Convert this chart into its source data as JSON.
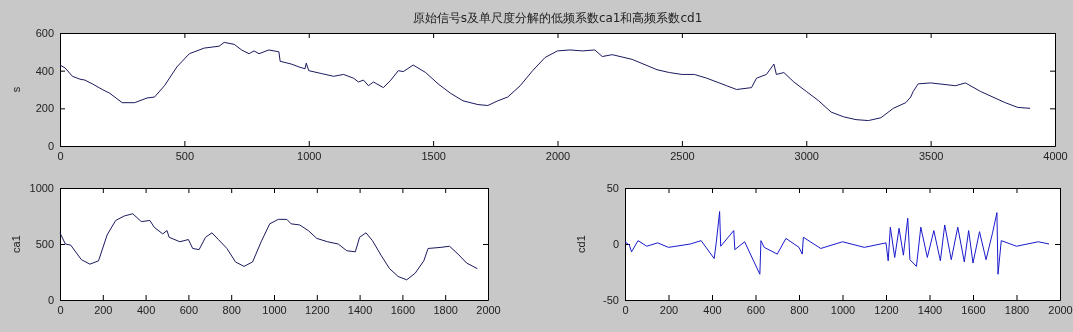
{
  "chart_data": [
    {
      "type": "line",
      "title": "原始信号s及单尺度分解的低频系数ca1和高频系数cd1",
      "ylabel": "s",
      "xlim": [
        0,
        4000
      ],
      "xticks": [
        0,
        500,
        1000,
        1500,
        2000,
        2500,
        3000,
        3500,
        4000
      ],
      "ylim": [
        0,
        600
      ],
      "yticks": [
        0,
        200,
        400,
        600
      ],
      "series": [
        {
          "color": "#1a1a5e",
          "x": [
            0,
            20,
            50,
            80,
            100,
            130,
            170,
            200,
            250,
            300,
            350,
            380,
            420,
            470,
            520,
            580,
            640,
            660,
            700,
            730,
            760,
            780,
            800,
            840,
            880,
            885,
            930,
            960,
            985,
            990,
            1000,
            1050,
            1100,
            1140,
            1180,
            1200,
            1220,
            1240,
            1260,
            1300,
            1330,
            1360,
            1380,
            1420,
            1470,
            1520,
            1570,
            1620,
            1680,
            1720,
            1760,
            1800,
            1850,
            1900,
            1950,
            2000,
            2050,
            2100,
            2150,
            2180,
            2220,
            2300,
            2400,
            2450,
            2500,
            2550,
            2600,
            2680,
            2720,
            2780,
            2800,
            2840,
            2870,
            2880,
            2910,
            2950,
            3000,
            3050,
            3100,
            3150,
            3200,
            3250,
            3300,
            3350,
            3400,
            3420,
            3430,
            3450,
            3500,
            3600,
            3640,
            3700,
            3800,
            3850,
            3900
          ],
          "values": [
            430,
            415,
            370,
            355,
            350,
            330,
            300,
            280,
            230,
            230,
            255,
            260,
            320,
            420,
            490,
            520,
            530,
            550,
            540,
            510,
            490,
            505,
            490,
            510,
            500,
            450,
            435,
            420,
            410,
            440,
            400,
            385,
            370,
            380,
            360,
            340,
            350,
            320,
            340,
            310,
            350,
            400,
            395,
            430,
            390,
            330,
            280,
            240,
            220,
            215,
            240,
            260,
            320,
            400,
            470,
            505,
            510,
            505,
            510,
            475,
            485,
            460,
            405,
            390,
            380,
            380,
            360,
            320,
            300,
            310,
            360,
            380,
            435,
            380,
            390,
            340,
            290,
            240,
            180,
            155,
            140,
            135,
            150,
            200,
            230,
            260,
            290,
            330,
            335,
            320,
            335,
            290,
            230,
            205,
            200
          ]
        }
      ]
    },
    {
      "type": "line",
      "ylabel": "ca1",
      "xlim": [
        0,
        2000
      ],
      "xticks": [
        0,
        200,
        400,
        600,
        800,
        1000,
        1200,
        1400,
        1600,
        1800,
        2000
      ],
      "ylim": [
        0,
        1000
      ],
      "yticks": [
        0,
        500,
        1000
      ],
      "series": [
        {
          "color": "#1a1a5e",
          "x": [
            0,
            25,
            50,
            100,
            140,
            180,
            220,
            260,
            300,
            340,
            380,
            420,
            440,
            480,
            500,
            510,
            560,
            600,
            620,
            650,
            680,
            710,
            740,
            780,
            820,
            860,
            900,
            940,
            980,
            1020,
            1060,
            1080,
            1120,
            1160,
            1200,
            1250,
            1300,
            1340,
            1380,
            1400,
            1430,
            1460,
            1500,
            1540,
            1580,
            1620,
            1660,
            1700,
            1720,
            1780,
            1820,
            1860,
            1900,
            1950
          ],
          "values": [
            600,
            500,
            490,
            360,
            320,
            350,
            580,
            710,
            750,
            770,
            700,
            710,
            650,
            590,
            620,
            560,
            520,
            540,
            460,
            450,
            560,
            600,
            540,
            460,
            340,
            300,
            340,
            520,
            680,
            720,
            720,
            680,
            670,
            620,
            550,
            520,
            500,
            440,
            430,
            560,
            600,
            530,
            400,
            280,
            210,
            180,
            240,
            350,
            460,
            470,
            480,
            410,
            330,
            280
          ]
        }
      ]
    },
    {
      "type": "line",
      "ylabel": "cd1",
      "xlim": [
        0,
        2000
      ],
      "xticks": [
        0,
        200,
        400,
        600,
        800,
        1000,
        1200,
        1400,
        1600,
        1800,
        2000
      ],
      "ylim": [
        -50,
        50
      ],
      "yticks": [
        -50,
        0,
        50
      ],
      "series": [
        {
          "color": "#1a1acc",
          "x": [
            0,
            20,
            30,
            60,
            100,
            150,
            200,
            300,
            350,
            410,
            420,
            435,
            440,
            500,
            505,
            550,
            620,
            625,
            640,
            700,
            740,
            800,
            815,
            820,
            900,
            1000,
            1100,
            1200,
            1210,
            1220,
            1240,
            1260,
            1280,
            1300,
            1310,
            1340,
            1360,
            1390,
            1420,
            1450,
            1470,
            1500,
            1530,
            1560,
            1580,
            1600,
            1630,
            1660,
            1690,
            1710,
            1715,
            1730,
            1800,
            1900,
            1950
          ],
          "values": [
            2,
            -1,
            -7,
            3,
            -2,
            1,
            -3,
            0,
            3,
            -13,
            2,
            29,
            -2,
            12,
            -5,
            2,
            -27,
            3,
            -3,
            -9,
            5,
            -3,
            -9,
            6,
            -4,
            2,
            -3,
            1,
            -15,
            15,
            -12,
            14,
            -10,
            23,
            -14,
            -20,
            15,
            -12,
            12,
            -15,
            17,
            -14,
            15,
            -16,
            12,
            -17,
            11,
            -14,
            10,
            28,
            -27,
            3,
            -2,
            2,
            0
          ]
        }
      ]
    }
  ]
}
